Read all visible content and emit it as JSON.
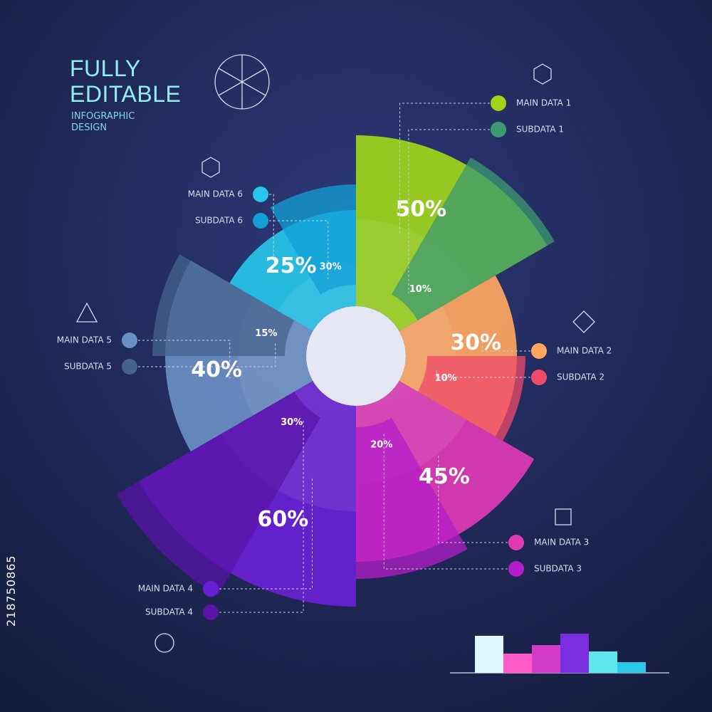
{
  "chart_data": {
    "type": "polar",
    "title": "FULLY EDITABLE",
    "subtitle": "INFOGRAPHIC DESIGN",
    "stock_id": "218750865",
    "series": [
      {
        "name": "MAIN DATA",
        "values": [
          50,
          30,
          45,
          60,
          40,
          25
        ],
        "value_labels": [
          "50%",
          "30%",
          "45%",
          "60%",
          "40%",
          "25%"
        ],
        "labels": [
          "MAIN DATA 1",
          "MAIN DATA 2",
          "MAIN DATA 3",
          "MAIN DATA 4",
          "MAIN DATA 5",
          "MAIN DATA 6"
        ],
        "colors": [
          "#9ed51a",
          "#ffa760",
          "#e03bb4",
          "#6a1fd4",
          "#6a8fc2",
          "#27c6ea"
        ]
      },
      {
        "name": "SUBDATA",
        "values": [
          10,
          10,
          20,
          30,
          15,
          30
        ],
        "value_labels": [
          "10%",
          "10%",
          "20%",
          "30%",
          "15%",
          "30%"
        ],
        "labels": [
          "SUBDATA 1",
          "SUBDATA 2",
          "SUBDATA 3",
          "SUBDATA 4",
          "SUBDATA 5",
          "SUBDATA 6"
        ],
        "colors": [
          "#3d9a70",
          "#f04a6a",
          "#b41ec8",
          "#5a14a8",
          "#44648e",
          "#139fd6"
        ]
      }
    ]
  }
}
